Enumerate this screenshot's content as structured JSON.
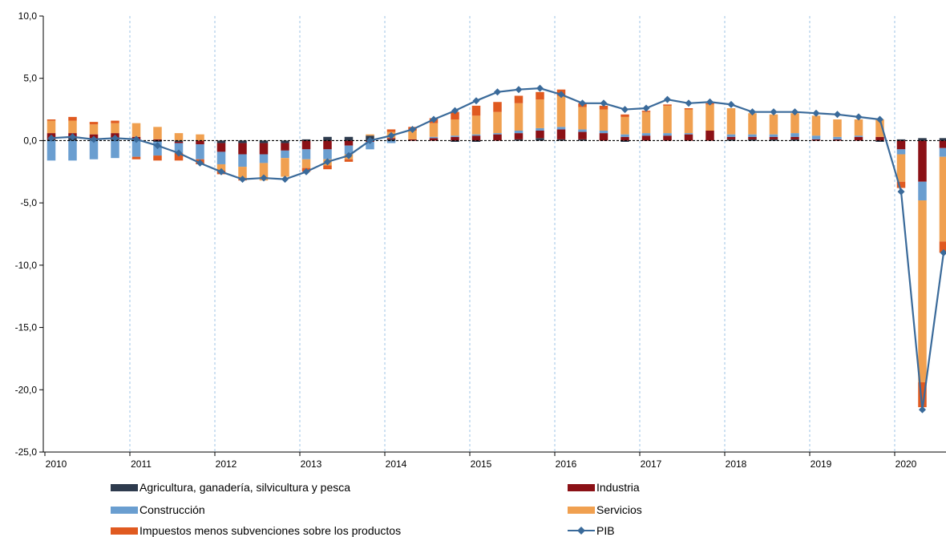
{
  "chart_data": {
    "type": "bar",
    "stacked": true,
    "title": "",
    "xlabel": "",
    "ylabel": "",
    "ylim": [
      -25,
      10
    ],
    "yticks": [
      10,
      5,
      0,
      -5,
      -10,
      -15,
      -20,
      -25
    ],
    "ytick_labels": [
      "10,0",
      "5,0",
      "0,0",
      "-5,0",
      "-10,0",
      "-15,0",
      "-20,0",
      "-25,0"
    ],
    "xtick_labels": [
      "2010",
      "2011",
      "2012",
      "2013",
      "2014",
      "2015",
      "2016",
      "2017",
      "2018",
      "2019",
      "2020"
    ],
    "x_start": "2010-Q1",
    "quarters_per_year": 4,
    "series": [
      {
        "name": "Agricultura, ganadería, silvicultura y pesca",
        "color": "#2e3b4e",
        "values": [
          0.1,
          0.2,
          0.1,
          0.1,
          0.0,
          -0.1,
          -0.1,
          0.0,
          -0.2,
          -0.2,
          -0.2,
          -0.2,
          0.1,
          0.3,
          0.3,
          0.4,
          0.1,
          0.0,
          0.0,
          -0.1,
          -0.1,
          0.0,
          0.1,
          0.2,
          0.1,
          0.1,
          0.0,
          -0.1,
          0.0,
          0.0,
          0.0,
          0.0,
          0.1,
          0.1,
          0.1,
          0.1,
          0.0,
          0.0,
          0.0,
          -0.1,
          0.1,
          0.2,
          0.2
        ]
      },
      {
        "name": "Industria",
        "color": "#8b1116",
        "values": [
          0.5,
          0.4,
          0.4,
          0.5,
          0.3,
          0.1,
          -0.1,
          -0.3,
          -0.7,
          -0.9,
          -0.9,
          -0.6,
          -0.7,
          -0.7,
          -0.4,
          -0.1,
          0.1,
          0.1,
          0.2,
          0.3,
          0.4,
          0.5,
          0.5,
          0.6,
          0.8,
          0.6,
          0.6,
          0.3,
          0.4,
          0.4,
          0.5,
          0.8,
          0.2,
          0.2,
          0.2,
          0.2,
          0.1,
          0.1,
          0.3,
          0.3,
          -0.7,
          -3.3,
          -0.6
        ]
      },
      {
        "name": "Construcción",
        "color": "#6a9ed0",
        "values": [
          -1.6,
          -1.6,
          -1.5,
          -1.4,
          -1.3,
          -1.1,
          -0.8,
          -1.2,
          -1.0,
          -1.0,
          -0.7,
          -0.6,
          -0.8,
          -0.8,
          -0.7,
          -0.6,
          -0.2,
          0.0,
          0.1,
          0.1,
          0.1,
          0.1,
          0.2,
          0.2,
          0.2,
          0.2,
          0.2,
          0.2,
          0.2,
          0.2,
          0.1,
          0.0,
          0.2,
          0.2,
          0.2,
          0.3,
          0.3,
          0.2,
          0.1,
          0.0,
          -0.4,
          -1.5,
          -0.7
        ]
      },
      {
        "name": "Servicios",
        "color": "#f0a050",
        "values": [
          1.0,
          1.0,
          0.8,
          0.8,
          1.1,
          1.0,
          0.6,
          0.5,
          -0.5,
          -1.0,
          -1.4,
          -1.5,
          -0.7,
          -0.5,
          -0.4,
          0.1,
          0.5,
          0.7,
          1.1,
          1.3,
          1.5,
          1.7,
          2.2,
          2.3,
          2.5,
          1.8,
          1.7,
          1.4,
          1.7,
          2.2,
          1.9,
          2.1,
          2.1,
          1.7,
          1.6,
          1.6,
          1.6,
          1.4,
          1.3,
          1.4,
          -2.2,
          -14.6,
          -6.8
        ]
      },
      {
        "name": "Impuestos menos subvenciones sobre los productos",
        "color": "#e05a20",
        "values": [
          0.1,
          0.3,
          0.2,
          0.2,
          -0.2,
          -0.4,
          -0.6,
          -0.4,
          -0.3,
          -0.1,
          0.0,
          0.0,
          -0.3,
          -0.3,
          -0.2,
          0.0,
          0.2,
          0.3,
          0.4,
          0.6,
          0.8,
          0.8,
          0.6,
          0.6,
          0.5,
          0.3,
          0.3,
          0.2,
          0.1,
          0.1,
          0.1,
          0.1,
          0.0,
          0.0,
          0.0,
          0.0,
          0.0,
          0.0,
          0.0,
          0.0,
          -0.5,
          -2.0,
          -0.9
        ]
      }
    ],
    "line": {
      "name": "PIB",
      "color": "#3a6a9a",
      "values": [
        0.2,
        0.3,
        0.1,
        0.2,
        0.1,
        -0.4,
        -1.0,
        -1.8,
        -2.5,
        -3.1,
        -3.0,
        -3.1,
        -2.5,
        -1.7,
        -1.2,
        0.0,
        0.4,
        0.9,
        1.7,
        2.4,
        3.2,
        3.9,
        4.1,
        4.2,
        3.7,
        3.0,
        3.0,
        2.5,
        2.6,
        3.3,
        3.0,
        3.1,
        2.9,
        2.3,
        2.3,
        2.3,
        2.2,
        2.1,
        1.9,
        1.7,
        -4.1,
        -21.6,
        -9.0
      ]
    },
    "grid": "vertical dashed at year starts",
    "legend_position": "bottom"
  }
}
